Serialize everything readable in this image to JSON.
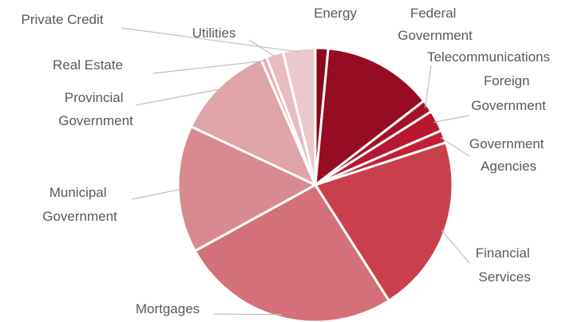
{
  "chart_data": {
    "type": "pie",
    "categories": [
      "Energy",
      "Federal Government",
      "Telecommunications",
      "Foreign Government",
      "Government Agencies",
      "Financial Services",
      "Mortgages",
      "Municipal Government",
      "Provincial Government",
      "Real Estate",
      "Utilities",
      "Private Credit"
    ],
    "values": [
      1.5,
      13,
      1.5,
      2.5,
      1.5,
      21,
      26,
      15,
      11.5,
      0.7,
      2,
      3.8
    ],
    "colors": [
      "#8b0a1e",
      "#960c23",
      "#a8102a",
      "#b8172f",
      "#c01f35",
      "#c9404c",
      "#d4707a",
      "#d98a90",
      "#dea4a8",
      "#e3b0b4",
      "#e6bcc0",
      "#eac8cb"
    ]
  }
}
